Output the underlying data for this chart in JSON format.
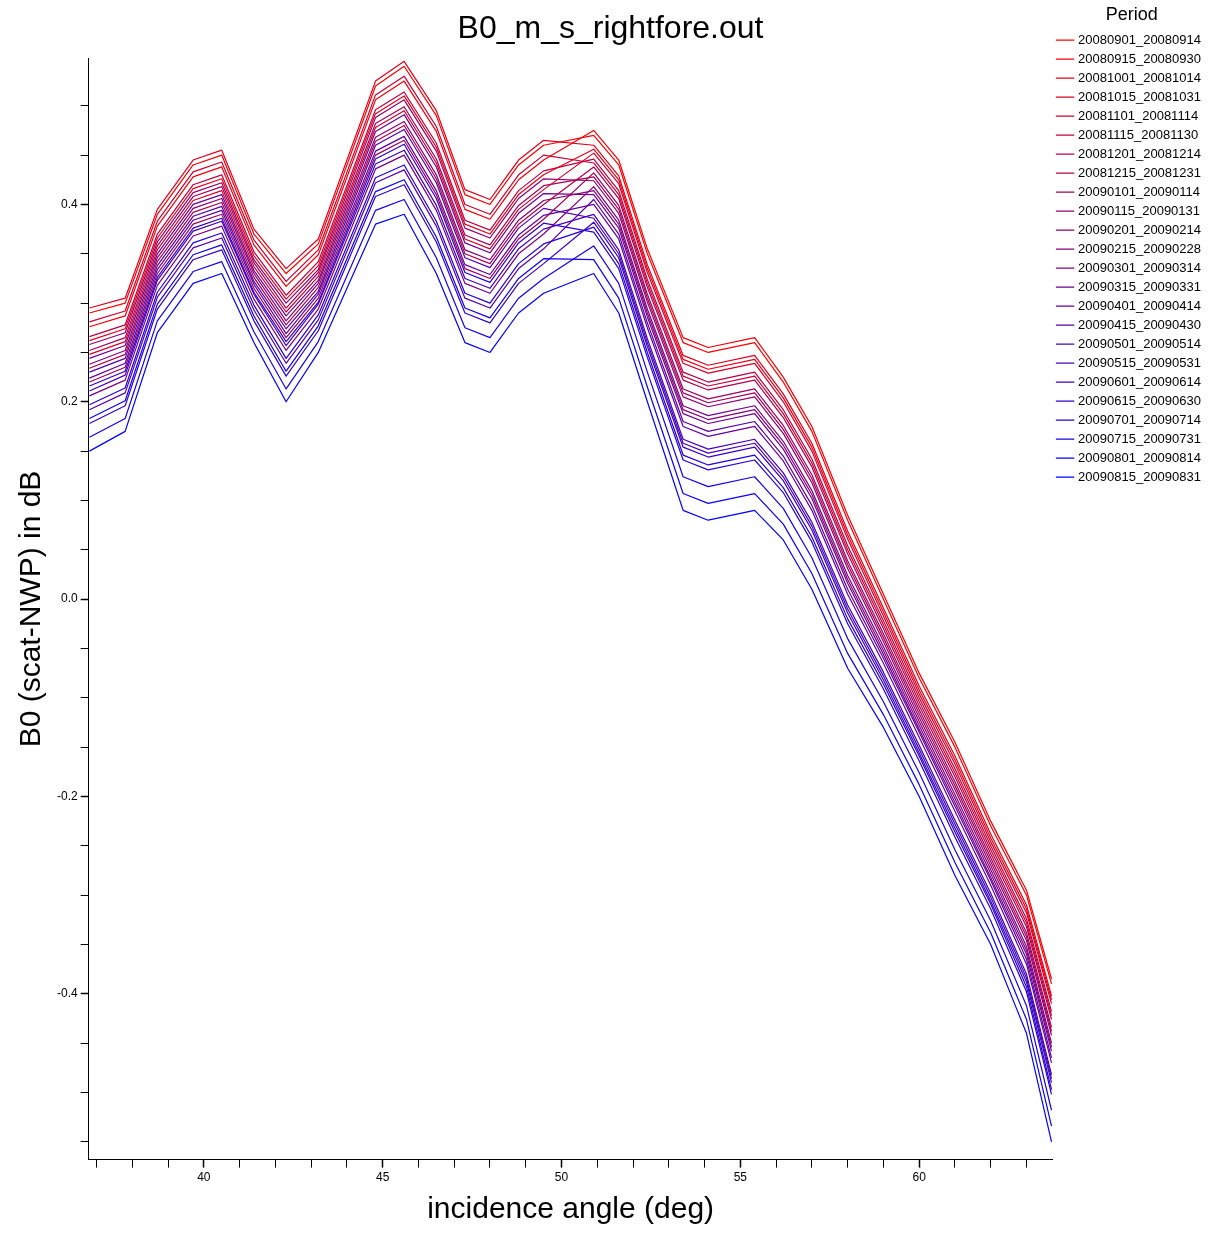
{
  "chart_data": {
    "type": "line",
    "title": "B0_m_s_rightfore.out",
    "xlabel": "incidence angle (deg)",
    "ylabel": "B0 (scat-NWP) in dB",
    "legend_title": "Period",
    "legend": "right",
    "marker": "none",
    "line_style": "solid",
    "grid": false,
    "x": [
      36.8,
      37.8,
      38.7,
      39.7,
      40.5,
      41.4,
      42.3,
      43.2,
      44.8,
      45.6,
      46.5,
      47.3,
      48.0,
      48.8,
      49.5,
      50.9,
      51.6,
      52.4,
      53.4,
      54.1,
      55.4,
      56.2,
      57.0,
      58.0,
      59.0,
      60.0,
      61.0,
      62.0,
      63.0,
      63.7
    ],
    "xlim": [
      36.78,
      63.73
    ],
    "ylim": [
      -0.568,
      0.548
    ],
    "xticks": [
      {
        "value": 37,
        "label": null
      },
      {
        "value": 38,
        "label": null
      },
      {
        "value": 39,
        "label": null
      },
      40,
      {
        "value": 41,
        "label": null
      },
      {
        "value": 42,
        "label": null
      },
      {
        "value": 43,
        "label": null
      },
      {
        "value": 44,
        "label": null
      },
      45,
      {
        "value": 46,
        "label": null
      },
      {
        "value": 47,
        "label": null
      },
      {
        "value": 48,
        "label": null
      },
      {
        "value": 49,
        "label": null
      },
      50,
      {
        "value": 51,
        "label": null
      },
      {
        "value": 52,
        "label": null
      },
      {
        "value": 53,
        "label": null
      },
      {
        "value": 54,
        "label": null
      },
      55,
      {
        "value": 56,
        "label": null
      },
      {
        "value": 57,
        "label": null
      },
      {
        "value": 58,
        "label": null
      },
      {
        "value": 59,
        "label": null
      },
      60,
      {
        "value": 61,
        "label": null
      },
      {
        "value": 62,
        "label": null
      },
      {
        "value": 63,
        "label": null
      }
    ],
    "yticks": [
      {
        "value": -0.55,
        "label": null
      },
      {
        "value": -0.5,
        "label": null
      },
      {
        "value": -0.45,
        "label": null
      },
      -0.4,
      {
        "value": -0.35,
        "label": null
      },
      {
        "value": -0.3,
        "label": null
      },
      {
        "value": -0.25,
        "label": null
      },
      -0.2,
      {
        "value": -0.15,
        "label": null
      },
      {
        "value": -0.1,
        "label": null
      },
      {
        "value": -0.05,
        "label": null
      },
      {
        "value": 0,
        "label": "0.0"
      },
      {
        "value": 0.05,
        "label": null
      },
      {
        "value": 0.1,
        "label": null
      },
      {
        "value": 0.15,
        "label": null
      },
      0.2,
      {
        "value": 0.25,
        "label": null
      },
      {
        "value": 0.3,
        "label": null
      },
      {
        "value": 0.35,
        "label": null
      },
      0.4,
      {
        "value": 0.45,
        "label": null
      },
      {
        "value": 0.5,
        "label": null
      }
    ],
    "series": [
      {
        "name": "20080901_20080914",
        "color": "#ff0000",
        "values": [
          0.29,
          0.3,
          0.39,
          0.44,
          0.45,
          0.37,
          0.33,
          0.36,
          0.52,
          0.54,
          0.49,
          0.41,
          0.4,
          0.44,
          0.46,
          0.47,
          0.44,
          0.35,
          0.26,
          0.25,
          0.26,
          0.22,
          0.17,
          0.08,
          0.0,
          -0.08,
          -0.15,
          -0.23,
          -0.3,
          -0.39
        ]
      },
      {
        "name": "20080915_20080930",
        "color": "#f4000b",
        "values": [
          0.276,
          0.287,
          0.378,
          0.428,
          0.438,
          0.359,
          0.317,
          0.349,
          0.506,
          0.525,
          0.474,
          0.395,
          0.385,
          0.425,
          0.445,
          0.475,
          0.445,
          0.355,
          0.265,
          0.255,
          0.265,
          0.225,
          0.175,
          0.085,
          0.005,
          -0.075,
          -0.145,
          -0.225,
          -0.295,
          -0.385
        ]
      },
      {
        "name": "20081001_20081014",
        "color": "#e90016",
        "values": [
          0.262,
          0.274,
          0.366,
          0.416,
          0.426,
          0.348,
          0.304,
          0.338,
          0.492,
          0.51,
          0.458,
          0.38,
          0.37,
          0.41,
          0.43,
          0.456,
          0.425,
          0.335,
          0.243,
          0.233,
          0.243,
          0.204,
          0.154,
          0.065,
          -0.013,
          -0.092,
          -0.163,
          -0.242,
          -0.314,
          -0.406
        ]
      },
      {
        "name": "20081015_20081031",
        "color": "#de0021",
        "values": [
          0.295,
          0.305,
          0.395,
          0.445,
          0.455,
          0.375,
          0.335,
          0.365,
          0.525,
          0.545,
          0.495,
          0.415,
          0.405,
          0.445,
          0.465,
          0.46,
          0.429,
          0.339,
          0.247,
          0.237,
          0.247,
          0.208,
          0.158,
          0.069,
          -0.009,
          -0.088,
          -0.159,
          -0.238,
          -0.31,
          -0.402
        ]
      },
      {
        "name": "20081101_20081114",
        "color": "#d3002c",
        "values": [
          0.248,
          0.261,
          0.354,
          0.404,
          0.414,
          0.337,
          0.291,
          0.327,
          0.478,
          0.495,
          0.442,
          0.365,
          0.355,
          0.395,
          0.415,
          0.452,
          0.421,
          0.331,
          0.239,
          0.229,
          0.239,
          0.2,
          0.15,
          0.061,
          -0.017,
          -0.096,
          -0.167,
          -0.246,
          -0.318,
          -0.41
        ]
      },
      {
        "name": "20081115_20081130",
        "color": "#c80037",
        "values": [
          0.281,
          0.292,
          0.383,
          0.433,
          0.443,
          0.364,
          0.322,
          0.354,
          0.511,
          0.53,
          0.479,
          0.4,
          0.39,
          0.43,
          0.45,
          0.442,
          0.41,
          0.32,
          0.226,
          0.216,
          0.226,
          0.188,
          0.138,
          0.05,
          -0.026,
          -0.104,
          -0.176,
          -0.254,
          -0.328,
          -0.422
        ]
      },
      {
        "name": "20081201_20081214",
        "color": "#bd0042",
        "values": [
          0.266,
          0.278,
          0.37,
          0.42,
          0.43,
          0.352,
          0.308,
          0.342,
          0.496,
          0.514,
          0.462,
          0.384,
          0.374,
          0.414,
          0.434,
          0.446,
          0.414,
          0.324,
          0.23,
          0.22,
          0.23,
          0.192,
          0.142,
          0.054,
          -0.022,
          -0.1,
          -0.172,
          -0.25,
          -0.324,
          -0.418
        ]
      },
      {
        "name": "20081215_20081231",
        "color": "#b2004d",
        "values": [
          0.234,
          0.248,
          0.342,
          0.392,
          0.402,
          0.326,
          0.278,
          0.316,
          0.464,
          0.48,
          0.426,
          0.35,
          0.34,
          0.38,
          0.4,
          0.438,
          0.406,
          0.316,
          0.222,
          0.212,
          0.222,
          0.184,
          0.134,
          0.046,
          -0.03,
          -0.108,
          -0.18,
          -0.258,
          -0.332,
          -0.426
        ]
      },
      {
        "name": "20090101_20090114",
        "color": "#a70058",
        "values": [
          0.252,
          0.265,
          0.358,
          0.408,
          0.418,
          0.341,
          0.295,
          0.331,
          0.482,
          0.499,
          0.446,
          0.369,
          0.359,
          0.399,
          0.419,
          0.428,
          0.395,
          0.305,
          0.209,
          0.199,
          0.209,
          0.172,
          0.122,
          0.035,
          -0.039,
          -0.116,
          -0.189,
          -0.266,
          -0.342,
          -0.438
        ]
      },
      {
        "name": "20090115_20090131",
        "color": "#9c0063",
        "values": [
          0.22,
          0.235,
          0.33,
          0.38,
          0.39,
          0.315,
          0.265,
          0.305,
          0.45,
          0.465,
          0.41,
          0.335,
          0.325,
          0.365,
          0.385,
          0.432,
          0.399,
          0.309,
          0.213,
          0.203,
          0.213,
          0.176,
          0.126,
          0.039,
          -0.035,
          -0.112,
          -0.185,
          -0.262,
          -0.338,
          -0.434
        ]
      },
      {
        "name": "20090201_20090214",
        "color": "#91006e",
        "values": [
          0.258,
          0.27,
          0.362,
          0.412,
          0.422,
          0.344,
          0.3,
          0.334,
          0.488,
          0.506,
          0.454,
          0.376,
          0.366,
          0.406,
          0.426,
          0.424,
          0.391,
          0.301,
          0.205,
          0.195,
          0.205,
          0.168,
          0.118,
          0.031,
          -0.043,
          -0.12,
          -0.193,
          -0.27,
          -0.346,
          -0.442
        ]
      },
      {
        "name": "20090215_20090228",
        "color": "#860079",
        "values": [
          0.238,
          0.252,
          0.346,
          0.396,
          0.406,
          0.33,
          0.282,
          0.32,
          0.468,
          0.484,
          0.43,
          0.354,
          0.344,
          0.384,
          0.404,
          0.414,
          0.38,
          0.29,
          0.192,
          0.182,
          0.192,
          0.156,
          0.106,
          0.02,
          -0.052,
          -0.128,
          -0.202,
          -0.278,
          -0.356,
          -0.454
        ]
      },
      {
        "name": "20090301_20090314",
        "color": "#7a0085",
        "values": [
          0.206,
          0.222,
          0.318,
          0.368,
          0.378,
          0.304,
          0.252,
          0.294,
          0.436,
          0.45,
          0.394,
          0.32,
          0.31,
          0.35,
          0.37,
          0.418,
          0.384,
          0.294,
          0.196,
          0.186,
          0.196,
          0.16,
          0.11,
          0.024,
          -0.048,
          -0.124,
          -0.198,
          -0.274,
          -0.352,
          -0.45
        ]
      },
      {
        "name": "20090315_20090331",
        "color": "#6f0090",
        "values": [
          0.244,
          0.257,
          0.35,
          0.4,
          0.41,
          0.333,
          0.287,
          0.323,
          0.474,
          0.491,
          0.438,
          0.361,
          0.351,
          0.391,
          0.411,
          0.41,
          0.376,
          0.286,
          0.188,
          0.178,
          0.188,
          0.152,
          0.102,
          0.016,
          -0.056,
          -0.132,
          -0.206,
          -0.282,
          -0.36,
          -0.458
        ]
      },
      {
        "name": "20090401_20090414",
        "color": "#64009b",
        "values": [
          0.224,
          0.239,
          0.334,
          0.384,
          0.394,
          0.319,
          0.269,
          0.309,
          0.454,
          0.469,
          0.414,
          0.339,
          0.329,
          0.369,
          0.389,
          0.4,
          0.365,
          0.275,
          0.175,
          0.165,
          0.175,
          0.14,
          0.09,
          0.005,
          -0.065,
          -0.14,
          -0.215,
          -0.29,
          -0.37,
          -0.47
        ]
      },
      {
        "name": "20090415_20090430",
        "color": "#5900a6",
        "values": [
          0.192,
          0.209,
          0.306,
          0.356,
          0.366,
          0.293,
          0.239,
          0.283,
          0.422,
          0.435,
          0.378,
          0.305,
          0.295,
          0.335,
          0.355,
          0.405,
          0.37,
          0.28,
          0.18,
          0.17,
          0.18,
          0.145,
          0.095,
          0.01,
          -0.06,
          -0.135,
          -0.21,
          -0.285,
          -0.365,
          -0.465
        ]
      },
      {
        "name": "20090501_20090514",
        "color": "#4e00b1",
        "values": [
          0.23,
          0.244,
          0.338,
          0.388,
          0.398,
          0.322,
          0.274,
          0.312,
          0.46,
          0.476,
          0.422,
          0.346,
          0.336,
          0.376,
          0.396,
          0.386,
          0.35,
          0.26,
          0.158,
          0.148,
          0.158,
          0.124,
          0.074,
          -0.01,
          -0.078,
          -0.152,
          -0.228,
          -0.302,
          -0.384,
          -0.486
        ]
      },
      {
        "name": "20090515_20090531",
        "color": "#4300bc",
        "values": [
          0.211,
          0.227,
          0.323,
          0.373,
          0.383,
          0.309,
          0.257,
          0.299,
          0.441,
          0.455,
          0.399,
          0.325,
          0.315,
          0.355,
          0.375,
          0.39,
          0.354,
          0.264,
          0.162,
          0.152,
          0.162,
          0.128,
          0.078,
          -0.006,
          -0.074,
          -0.148,
          -0.224,
          -0.298,
          -0.38,
          -0.482
        ]
      },
      {
        "name": "20090601_20090614",
        "color": "#3800c7",
        "values": [
          0.178,
          0.196,
          0.294,
          0.344,
          0.354,
          0.282,
          0.226,
          0.272,
          0.408,
          0.42,
          0.362,
          0.29,
          0.28,
          0.32,
          0.34,
          0.382,
          0.346,
          0.256,
          0.154,
          0.144,
          0.154,
          0.12,
          0.07,
          -0.014,
          -0.082,
          -0.156,
          -0.232,
          -0.306,
          -0.388,
          -0.49
        ]
      },
      {
        "name": "20090615_20090630",
        "color": "#2d00d2",
        "values": [
          0.216,
          0.231,
          0.326,
          0.376,
          0.386,
          0.311,
          0.261,
          0.301,
          0.446,
          0.461,
          0.406,
          0.331,
          0.321,
          0.361,
          0.381,
          0.372,
          0.335,
          0.245,
          0.141,
          0.131,
          0.141,
          0.108,
          0.058,
          -0.025,
          -0.091,
          -0.164,
          -0.241,
          -0.314,
          -0.398,
          -0.502
        ]
      },
      {
        "name": "20090701_20090714",
        "color": "#2200dd",
        "values": [
          0.197,
          0.214,
          0.311,
          0.361,
          0.371,
          0.298,
          0.244,
          0.288,
          0.427,
          0.44,
          0.383,
          0.31,
          0.3,
          0.34,
          0.36,
          0.377,
          0.34,
          0.25,
          0.146,
          0.136,
          0.146,
          0.113,
          0.063,
          -0.02,
          -0.086,
          -0.159,
          -0.236,
          -0.309,
          -0.393,
          -0.497
        ]
      },
      {
        "name": "20090715_20090731",
        "color": "#1700e8",
        "values": [
          0.164,
          0.183,
          0.282,
          0.332,
          0.342,
          0.271,
          0.213,
          0.261,
          0.394,
          0.405,
          0.346,
          0.275,
          0.265,
          0.305,
          0.325,
          0.358,
          0.32,
          0.23,
          0.124,
          0.114,
          0.124,
          0.092,
          0.042,
          -0.04,
          -0.104,
          -0.176,
          -0.254,
          -0.326,
          -0.412,
          -0.518
        ]
      },
      {
        "name": "20090801_20090814",
        "color": "#0c00f3",
        "values": [
          0.183,
          0.201,
          0.299,
          0.349,
          0.359,
          0.287,
          0.231,
          0.277,
          0.413,
          0.425,
          0.367,
          0.295,
          0.285,
          0.325,
          0.345,
          0.344,
          0.305,
          0.215,
          0.107,
          0.097,
          0.107,
          0.076,
          0.026,
          -0.055,
          -0.117,
          -0.188,
          -0.267,
          -0.338,
          -0.426,
          -0.534
        ]
      },
      {
        "name": "20090815_20090831",
        "color": "#0000ff",
        "values": [
          0.15,
          0.17,
          0.27,
          0.32,
          0.33,
          0.26,
          0.2,
          0.25,
          0.38,
          0.39,
          0.33,
          0.26,
          0.25,
          0.29,
          0.31,
          0.33,
          0.29,
          0.2,
          0.09,
          0.08,
          0.09,
          0.06,
          0.01,
          -0.07,
          -0.13,
          -0.2,
          -0.28,
          -0.35,
          -0.44,
          -0.55
        ]
      }
    ]
  }
}
